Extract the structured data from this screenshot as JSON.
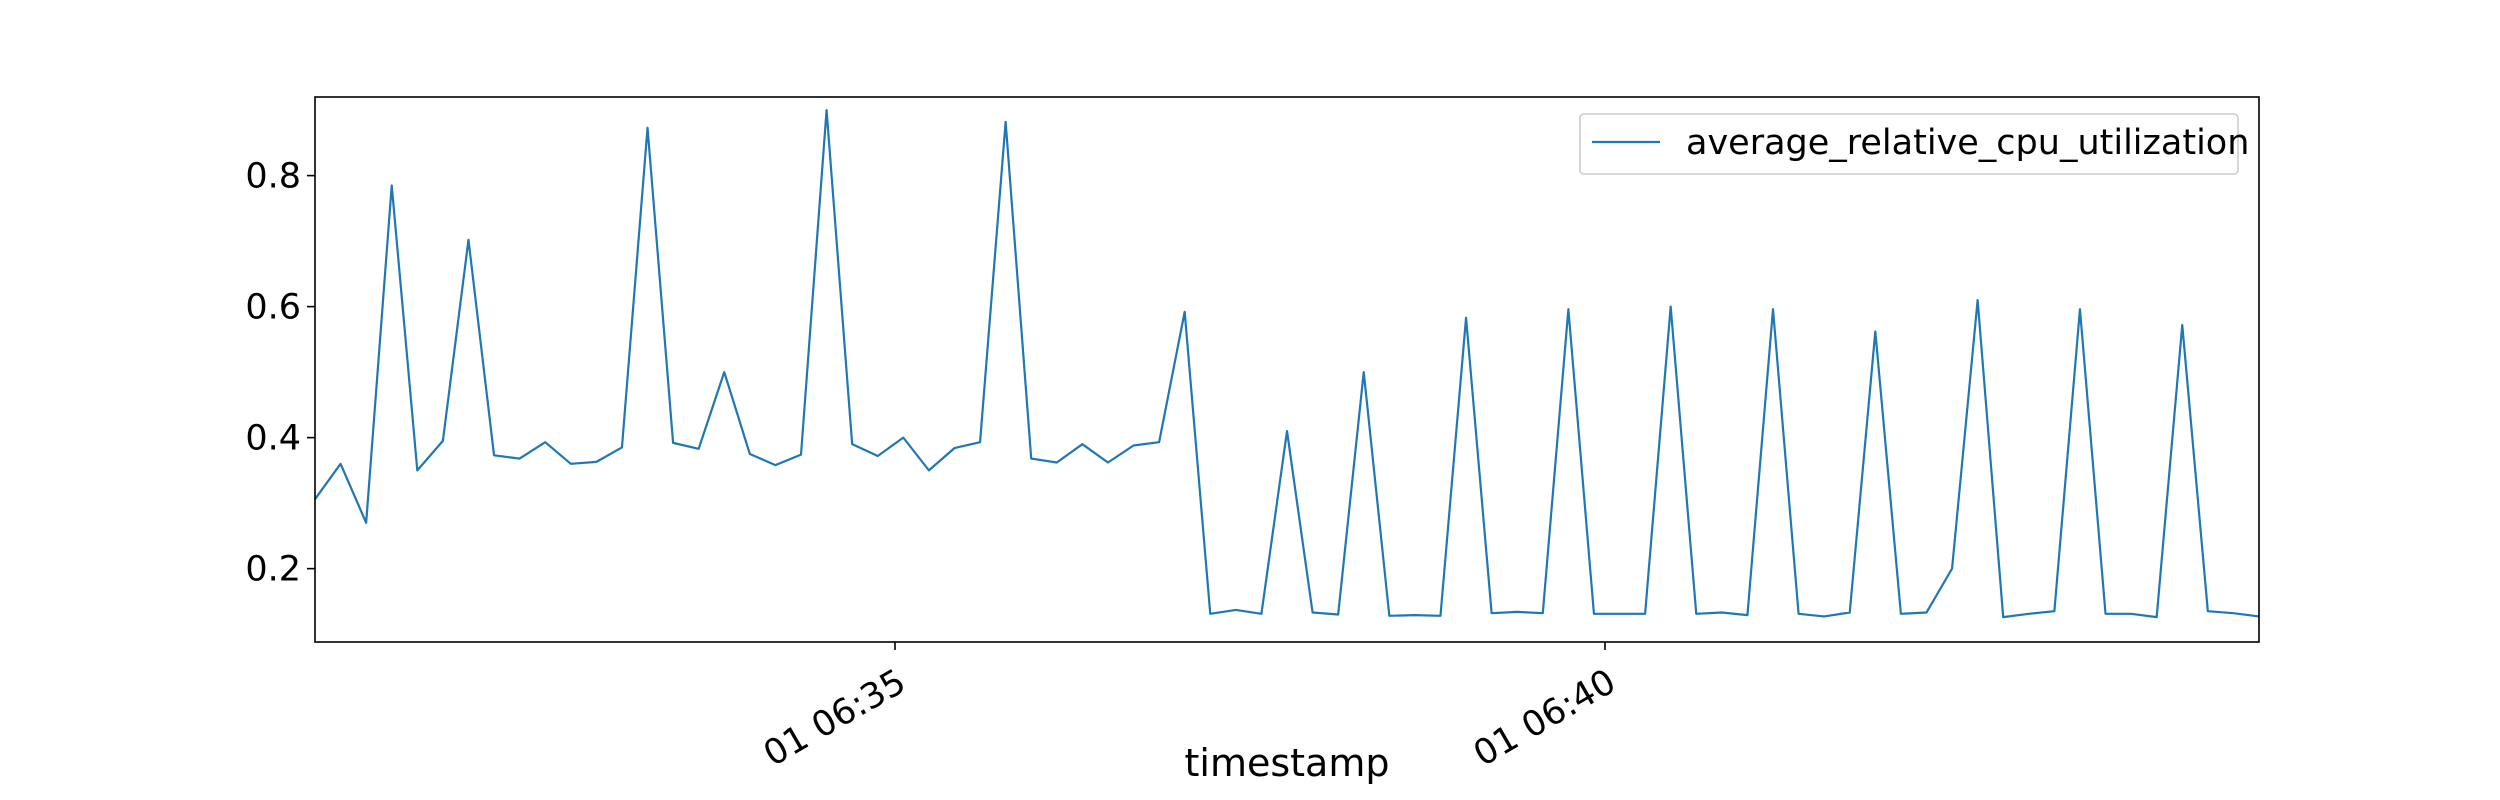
{
  "chart_data": {
    "type": "line",
    "xlabel": "timestamp",
    "ylabel": "",
    "x_tick_labels": [
      "01 06:35",
      "01 06:40"
    ],
    "y_ticks": [
      0.2,
      0.4,
      0.6,
      0.8
    ],
    "ylim": [
      0.088,
      0.92
    ],
    "grid": false,
    "legend_position": "top-right",
    "colors": {
      "series": "#1f77b4",
      "axes": "#000000",
      "background": "#ffffff"
    },
    "series": [
      {
        "name": "average_relative_cpu_utilization",
        "values": [
          0.306,
          0.36,
          0.27,
          0.785,
          0.35,
          0.395,
          0.702,
          0.373,
          0.368,
          0.393,
          0.36,
          0.363,
          0.385,
          0.873,
          0.392,
          0.383,
          0.5,
          0.375,
          0.358,
          0.374,
          0.9,
          0.39,
          0.372,
          0.4,
          0.35,
          0.384,
          0.393,
          0.882,
          0.368,
          0.362,
          0.39,
          0.362,
          0.388,
          0.393,
          0.592,
          0.131,
          0.137,
          0.131,
          0.41,
          0.133,
          0.13,
          0.5,
          0.128,
          0.129,
          0.128,
          0.583,
          0.132,
          0.134,
          0.132,
          0.596,
          0.131,
          0.131,
          0.131,
          0.6,
          0.131,
          0.133,
          0.129,
          0.596,
          0.131,
          0.127,
          0.133,
          0.562,
          0.131,
          0.133,
          0.2,
          0.61,
          0.126,
          0.131,
          0.135,
          0.596,
          0.131,
          0.131,
          0.126,
          0.572,
          0.135,
          0.132,
          0.127
        ]
      }
    ]
  }
}
